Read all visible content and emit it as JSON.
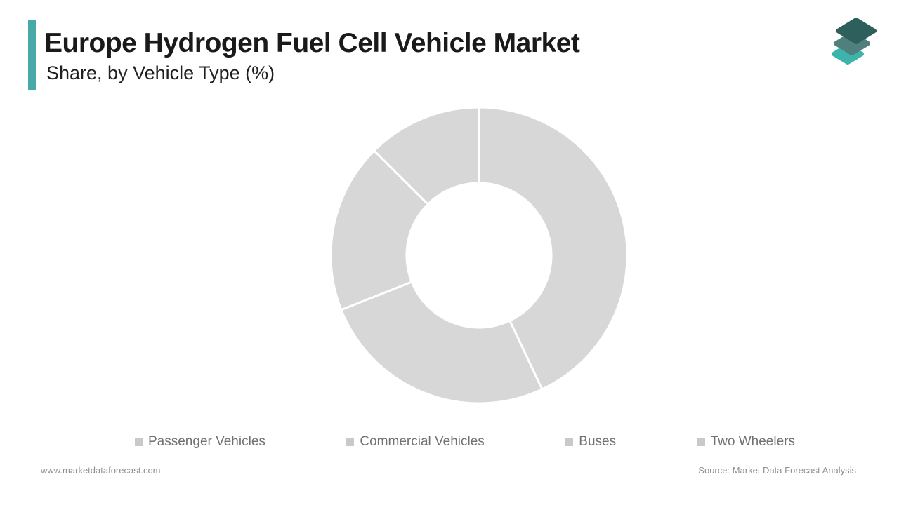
{
  "header": {
    "title": "Europe Hydrogen Fuel Cell Vehicle Market",
    "subtitle": "Share, by Vehicle Type (%)"
  },
  "chart_data": {
    "type": "pie",
    "donut": true,
    "title": "Europe Hydrogen Fuel Cell Vehicle Market Share, by Vehicle Type (%)",
    "categories": [
      "Passenger Vehicles",
      "Commercial Vehicles",
      "Buses",
      "Two Wheelers"
    ],
    "values": [
      43,
      26,
      18.5,
      12.5
    ],
    "unit": "%",
    "value_labels_shown": false,
    "start_angle_deg": 0,
    "direction": "clockwise",
    "inner_radius_ratio": 0.49,
    "legend_position": "bottom",
    "segment_color": "#d7d7d7",
    "separator_color": "#ffffff"
  },
  "legend": {
    "marker_color": "#c9c9c9",
    "text_color": "#707174"
  },
  "footer": {
    "website": "www.marketdataforecast.com",
    "source": "Source: Market Data Forecast Analysis"
  },
  "colors": {
    "accent_bar": "#48a9a6",
    "title_text": "#1a1a1a",
    "footer_text": "#8f8f8f",
    "logo_layers": [
      "#3cb4ab",
      "#4f807d",
      "#2d5f5c"
    ]
  }
}
